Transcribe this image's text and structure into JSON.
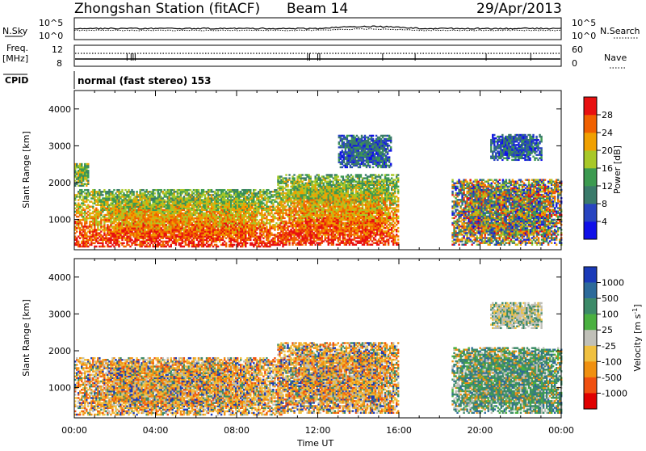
{
  "header": {
    "station": "Zhongshan Station (fitACF)",
    "beam": "Beam 14",
    "date": "29/Apr/2013"
  },
  "strip1": {
    "left_label": "N.Sky",
    "right_label": "N.Search",
    "left_ticks": [
      "10^5",
      "10^0"
    ],
    "right_ticks": [
      "10^5",
      "10^0"
    ]
  },
  "strip2": {
    "left_label_1": "Freq.",
    "left_label_2": "[MHz]",
    "left_ticks": [
      "12",
      "8"
    ],
    "right_label": "Nave",
    "right_ticks": [
      "60",
      "0"
    ]
  },
  "cpid": {
    "label": "CPID",
    "mode_text": "normal (fast stereo) 153"
  },
  "axes": {
    "ylabel": "Slant Range [km]",
    "xlabel": "Time UT",
    "y_ticks": [
      "1000",
      "2000",
      "3000",
      "4000"
    ],
    "x_ticks": [
      "00:00",
      "04:00",
      "08:00",
      "12:00",
      "16:00",
      "20:00",
      "00:00"
    ]
  },
  "power_bar": {
    "label": "Power [dB]",
    "ticks": [
      "4",
      "8",
      "12",
      "16",
      "20",
      "24",
      "28"
    ],
    "colors": [
      "#1010e8",
      "#2844c0",
      "#3a7a6a",
      "#3c9a50",
      "#a8c828",
      "#f0a000",
      "#f06000",
      "#e81010"
    ]
  },
  "velocity_bar": {
    "label": "Velocity [m s",
    "label_sup": "-1",
    "label_end": "]",
    "ticks": [
      "1000",
      "500",
      "100",
      "25",
      "-25",
      "-100",
      "-500",
      "-1000"
    ],
    "colors": [
      "#1a3ab8",
      "#2c6a9a",
      "#3c8a68",
      "#4ab040",
      "#c0c0b8",
      "#f0c040",
      "#f09010",
      "#f05010",
      "#e00000"
    ]
  },
  "chart_data": {
    "type": "heatmap",
    "x_range": [
      "00:00",
      "24:00"
    ],
    "y_range_km": [
      180,
      4500
    ],
    "power_regions": [
      {
        "t0": 0.0,
        "t1": 10.3,
        "r0": 250,
        "r1": 1800,
        "level": "high"
      },
      {
        "t0": 10.0,
        "t1": 16.0,
        "r0": 300,
        "r1": 2200,
        "level": "high"
      },
      {
        "t0": 13.0,
        "t1": 15.6,
        "r0": 2400,
        "r1": 3300,
        "level": "low"
      },
      {
        "t0": 18.6,
        "t1": 24.0,
        "r0": 300,
        "r1": 2100,
        "level": "mixed"
      },
      {
        "t0": 20.5,
        "t1": 23.0,
        "r0": 2600,
        "r1": 3300,
        "level": "low"
      },
      {
        "t0": 0.0,
        "t1": 0.7,
        "r0": 1900,
        "r1": 2500,
        "level": "mid"
      }
    ],
    "velocity_regions": [
      {
        "t0": 0.0,
        "t1": 10.3,
        "r0": 250,
        "r1": 1800,
        "sign": "negative"
      },
      {
        "t0": 10.0,
        "t1": 16.0,
        "r0": 300,
        "r1": 2200,
        "sign": "negative"
      },
      {
        "t0": 18.6,
        "t1": 24.0,
        "r0": 300,
        "r1": 2100,
        "sign": "positive"
      },
      {
        "t0": 20.5,
        "t1": 23.0,
        "r0": 2600,
        "r1": 3300,
        "sign": "ground"
      }
    ]
  }
}
